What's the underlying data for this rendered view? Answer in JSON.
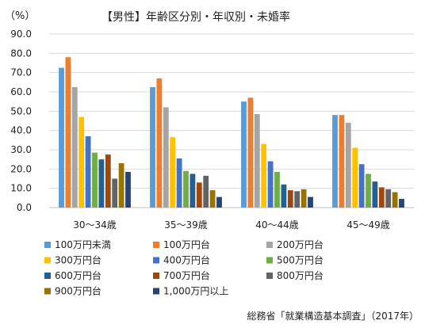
{
  "chart_data": {
    "type": "bar",
    "title": "【男性】年齢区分別・年収別・未婚率",
    "unit_label": "（%）",
    "source": "総務省「就業構造基本調査」（2017年）",
    "ylim": [
      0,
      90
    ],
    "yticks": [
      "0.0",
      "10.0",
      "20.0",
      "30.0",
      "40.0",
      "50.0",
      "60.0",
      "70.0",
      "80.0",
      "90.0"
    ],
    "grid": true,
    "legend_position": "bottom",
    "categories": [
      "30〜34歳",
      "35〜39歳",
      "40〜44歳",
      "45〜49歳"
    ],
    "series": [
      {
        "name": "100万円未満",
        "color": "#5B9BD5",
        "values": [
          72.5,
          62.5,
          55.0,
          48.0
        ]
      },
      {
        "name": "100万円台",
        "color": "#ED7D31",
        "values": [
          78.0,
          67.0,
          57.0,
          48.0
        ]
      },
      {
        "name": "200万円台",
        "color": "#A5A5A5",
        "values": [
          62.5,
          52.0,
          48.5,
          44.0
        ]
      },
      {
        "name": "300万円台",
        "color": "#FFC000",
        "values": [
          47.0,
          36.5,
          33.0,
          31.0
        ]
      },
      {
        "name": "400万円台",
        "color": "#4472C4",
        "values": [
          37.0,
          25.5,
          24.0,
          22.5
        ]
      },
      {
        "name": "500万円台",
        "color": "#70AD47",
        "values": [
          28.5,
          19.0,
          18.5,
          17.5
        ]
      },
      {
        "name": "600万円台",
        "color": "#255E91",
        "values": [
          25.0,
          17.5,
          12.0,
          13.5
        ]
      },
      {
        "name": "700万円台",
        "color": "#9E480E",
        "values": [
          27.5,
          13.0,
          9.0,
          10.5
        ]
      },
      {
        "name": "800万円台",
        "color": "#636363",
        "values": [
          15.0,
          16.5,
          8.5,
          9.5
        ]
      },
      {
        "name": "900万円台",
        "color": "#997300",
        "values": [
          23.0,
          9.0,
          9.5,
          8.0
        ]
      },
      {
        "name": "1,000万円以上",
        "color": "#264478",
        "values": [
          18.5,
          5.5,
          5.5,
          4.5
        ]
      }
    ]
  }
}
